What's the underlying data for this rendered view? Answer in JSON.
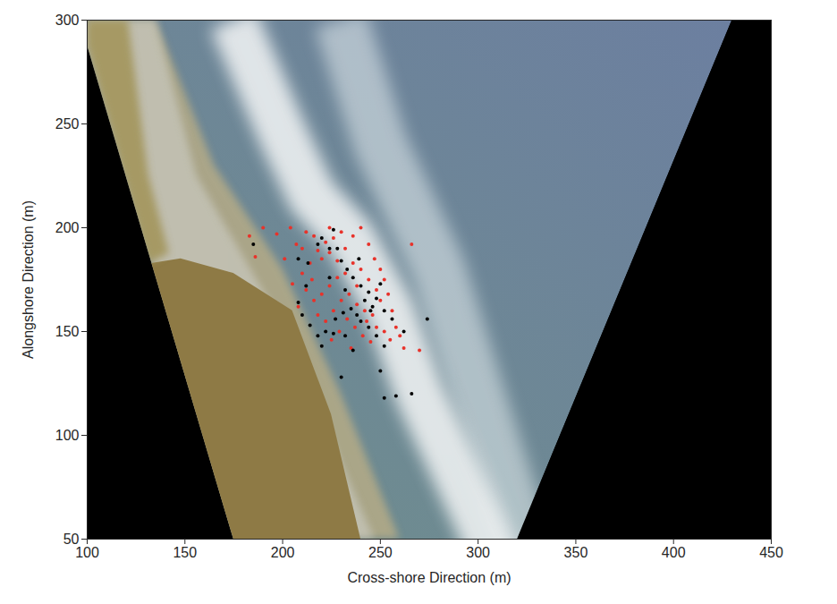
{
  "chart_data": {
    "type": "scatter",
    "xlabel": "Cross-shore Direction (m)",
    "ylabel": "Alongshore Direction (m)",
    "xlim": [
      100,
      450
    ],
    "ylim": [
      50,
      300
    ],
    "xticks": [
      100,
      150,
      200,
      250,
      300,
      350,
      400,
      450
    ],
    "yticks": [
      50,
      100,
      150,
      200,
      250,
      300
    ],
    "grid": false,
    "series": [
      {
        "color": "#e8322a",
        "marker": "dot",
        "x": [
          183,
          186,
          190,
          197,
          201,
          204,
          207,
          210,
          212,
          214,
          216,
          218,
          220,
          222,
          224,
          226,
          230,
          232,
          236,
          240,
          244,
          247,
          250,
          252,
          248,
          244,
          240,
          236,
          232,
          228,
          224,
          220,
          216,
          212,
          208,
          205,
          210,
          218,
          222,
          226,
          230,
          234,
          238,
          242,
          246,
          250,
          254,
          256,
          258,
          255,
          252,
          248,
          245,
          241,
          237,
          233,
          229,
          225,
          235,
          260,
          262,
          270,
          266,
          243,
          228,
          238,
          224,
          215
        ],
        "y": [
          196,
          186,
          200,
          197,
          185,
          200,
          192,
          190,
          198,
          183,
          196,
          189,
          185,
          193,
          200,
          195,
          198,
          190,
          196,
          200,
          192,
          185,
          180,
          175,
          170,
          175,
          180,
          183,
          178,
          176,
          172,
          168,
          165,
          170,
          162,
          173,
          178,
          158,
          155,
          160,
          165,
          168,
          163,
          160,
          158,
          165,
          168,
          160,
          152,
          146,
          150,
          152,
          145,
          148,
          152,
          156,
          150,
          146,
          142,
          148,
          142,
          141,
          192,
          155,
          184,
          172,
          188,
          175
        ]
      },
      {
        "color": "#000000",
        "marker": "dot",
        "x": [
          185,
          208,
          213,
          218,
          220,
          224,
          226,
          230,
          233,
          236,
          240,
          244,
          248,
          250,
          252,
          246,
          242,
          238,
          235,
          231,
          227,
          222,
          218,
          214,
          210,
          208,
          220,
          226,
          232,
          236,
          240,
          244,
          248,
          252,
          256,
          262,
          274,
          250,
          230,
          252,
          258,
          266,
          245,
          232,
          224,
          228,
          212,
          239
        ],
        "y": [
          192,
          185,
          183,
          192,
          195,
          190,
          199,
          184,
          180,
          176,
          172,
          169,
          166,
          173,
          160,
          162,
          165,
          158,
          161,
          159,
          156,
          150,
          148,
          153,
          158,
          164,
          143,
          149,
          148,
          141,
          155,
          152,
          148,
          143,
          156,
          150,
          156,
          131,
          128,
          118,
          119,
          120,
          160,
          170,
          176,
          190,
          172,
          185
        ]
      }
    ]
  }
}
